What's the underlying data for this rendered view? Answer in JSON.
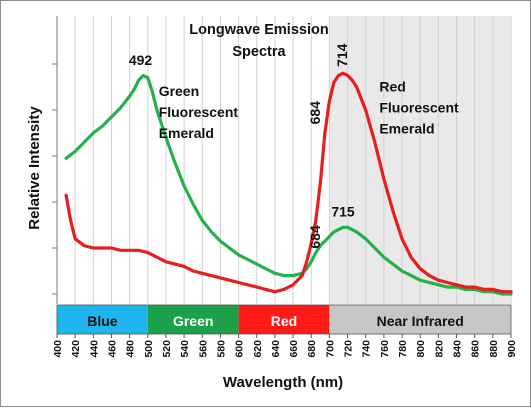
{
  "chart_data": {
    "type": "line",
    "title_lines": [
      "Longwave Emission",
      "Spectra"
    ],
    "xlabel": "Wavelength (nm)",
    "ylabel": "Relative Intensity",
    "xlim": [
      400,
      900
    ],
    "ylim": [
      0,
      100
    ],
    "x_ticks": [
      400,
      420,
      440,
      460,
      480,
      500,
      520,
      540,
      560,
      580,
      600,
      620,
      640,
      660,
      680,
      700,
      720,
      740,
      760,
      780,
      800,
      820,
      840,
      860,
      880,
      900
    ],
    "grid": "vertical lines",
    "shaded_region": {
      "from": 700,
      "to": 900,
      "color": "#e9e9e9"
    },
    "color_bands": [
      {
        "label": "Blue",
        "from": 400,
        "to": 500,
        "color": "#1fb5ee",
        "text_color": "#111111"
      },
      {
        "label": "Green",
        "from": 500,
        "to": 600,
        "color": "#1ca14a",
        "text_color": "#ffffff"
      },
      {
        "label": "Red",
        "from": 600,
        "to": 700,
        "color": "#ff1a1a",
        "text_color": "#ffffff"
      },
      {
        "label": "Near Infrared",
        "from": 700,
        "to": 900,
        "color": "#c6c6c6",
        "text_color": "#111111"
      }
    ],
    "series": [
      {
        "color": "#24b14b",
        "x": [
          410,
          420,
          430,
          440,
          450,
          460,
          470,
          480,
          485,
          490,
          495,
          500,
          505,
          510,
          520,
          530,
          540,
          550,
          560,
          570,
          580,
          590,
          600,
          610,
          620,
          630,
          640,
          650,
          660,
          670,
          675,
          680,
          685,
          690,
          695,
          700,
          705,
          710,
          715,
          720,
          725,
          730,
          740,
          750,
          760,
          770,
          780,
          790,
          800,
          810,
          820,
          830,
          840,
          850,
          860,
          870,
          880,
          890,
          900
        ],
        "values": [
          59,
          62,
          66,
          70,
          73,
          77,
          81,
          86,
          89,
          93,
          95,
          94,
          88,
          80,
          68,
          57,
          47,
          39,
          32,
          27,
          23,
          20,
          17,
          15,
          13,
          11,
          9,
          8,
          8,
          9,
          11,
          14,
          18,
          21,
          23,
          25,
          27,
          28,
          29,
          29,
          28,
          27,
          24,
          20,
          16,
          13,
          10,
          8,
          6,
          5,
          4,
          3,
          3,
          2,
          2,
          1,
          1,
          0,
          0
        ]
      },
      {
        "color": "#e81d1d",
        "x": [
          410,
          415,
          420,
          430,
          440,
          450,
          460,
          470,
          480,
          490,
          500,
          510,
          520,
          530,
          540,
          550,
          560,
          570,
          580,
          590,
          600,
          610,
          620,
          630,
          640,
          650,
          660,
          670,
          675,
          680,
          685,
          690,
          695,
          700,
          705,
          710,
          715,
          720,
          725,
          730,
          740,
          750,
          760,
          770,
          780,
          790,
          800,
          810,
          820,
          830,
          840,
          850,
          860,
          870,
          880,
          890,
          900
        ],
        "values": [
          43,
          32,
          24,
          21,
          20,
          20,
          20,
          19,
          19,
          19,
          18,
          16,
          14,
          13,
          12,
          10,
          9,
          8,
          7,
          6,
          5,
          4,
          3,
          2,
          1,
          2,
          4,
          8,
          14,
          22,
          32,
          48,
          70,
          84,
          92,
          95,
          96,
          95,
          93,
          90,
          80,
          66,
          50,
          36,
          24,
          16,
          11,
          8,
          6,
          5,
          4,
          3,
          3,
          2,
          2,
          1,
          1
        ]
      }
    ],
    "annotations": [
      {
        "text": "492",
        "x": 492,
        "y": 97,
        "rotated": false
      },
      {
        "text": "714",
        "x": 714,
        "y": 97,
        "rotated": true
      },
      {
        "text": "684",
        "x": 684,
        "y": 72,
        "rotated": true
      },
      {
        "text": "684",
        "x": 684,
        "y": 18,
        "rotated": true
      },
      {
        "text": "715",
        "x": 715,
        "y": 31,
        "rotated": false
      }
    ],
    "labels": [
      {
        "lines": [
          "Green",
          "Fluorescent",
          "Emerald"
        ],
        "x": 512,
        "y": 86
      },
      {
        "lines": [
          "Red",
          "Fluorescent",
          "Emerald"
        ],
        "x": 755,
        "y": 88
      }
    ]
  }
}
